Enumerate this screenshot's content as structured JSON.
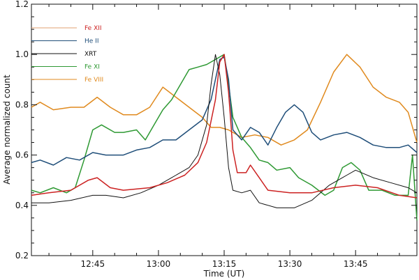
{
  "chart_data": {
    "type": "line",
    "xlabel": "Time (UT)",
    "ylabel": "Average normalized count",
    "x_unit": "UT",
    "xlim": [
      "12:31",
      "13:59"
    ],
    "ylim": [
      0.2,
      1.2
    ],
    "yticks": [
      "0.2",
      "0.4",
      "0.6",
      "0.8",
      "1.0",
      "1.2"
    ],
    "xticks": [
      "12:45",
      "13:00",
      "13:15",
      "13:30",
      "13:45"
    ],
    "grid": false,
    "legend_position": "top-left",
    "series": [
      {
        "name": "Fe XII",
        "color": "#cc2222",
        "legend_color": "#e0a070",
        "points": [
          [
            "12:31",
            0.44
          ],
          [
            "12:35",
            0.45
          ],
          [
            "12:40",
            0.46
          ],
          [
            "12:44",
            0.5
          ],
          [
            "12:46",
            0.51
          ],
          [
            "12:49",
            0.47
          ],
          [
            "12:52",
            0.46
          ],
          [
            "12:58",
            0.47
          ],
          [
            "13:02",
            0.49
          ],
          [
            "13:06",
            0.52
          ],
          [
            "13:09",
            0.57
          ],
          [
            "13:11",
            0.65
          ],
          [
            "13:13",
            0.82
          ],
          [
            "13:14",
            0.97
          ],
          [
            "13:15",
            1.0
          ],
          [
            "13:16",
            0.85
          ],
          [
            "13:17",
            0.62
          ],
          [
            "13:18",
            0.53
          ],
          [
            "13:20",
            0.53
          ],
          [
            "13:21",
            0.56
          ],
          [
            "13:23",
            0.51
          ],
          [
            "13:25",
            0.46
          ],
          [
            "13:30",
            0.45
          ],
          [
            "13:35",
            0.45
          ],
          [
            "13:40",
            0.47
          ],
          [
            "13:45",
            0.48
          ],
          [
            "13:50",
            0.47
          ],
          [
            "13:55",
            0.44
          ],
          [
            "13:59",
            0.43
          ]
        ]
      },
      {
        "name": "He II",
        "color": "#1f4e79",
        "legend_color": "#1f4e79",
        "points": [
          [
            "12:31",
            0.57
          ],
          [
            "12:33",
            0.58
          ],
          [
            "12:36",
            0.56
          ],
          [
            "12:39",
            0.59
          ],
          [
            "12:42",
            0.58
          ],
          [
            "12:45",
            0.61
          ],
          [
            "12:48",
            0.6
          ],
          [
            "12:52",
            0.6
          ],
          [
            "12:55",
            0.62
          ],
          [
            "12:58",
            0.63
          ],
          [
            "13:01",
            0.66
          ],
          [
            "13:04",
            0.66
          ],
          [
            "13:07",
            0.7
          ],
          [
            "13:10",
            0.74
          ],
          [
            "13:12",
            0.82
          ],
          [
            "13:14",
            0.98
          ],
          [
            "13:15",
            0.99
          ],
          [
            "13:16",
            0.9
          ],
          [
            "13:17",
            0.7
          ],
          [
            "13:19",
            0.66
          ],
          [
            "13:21",
            0.71
          ],
          [
            "13:23",
            0.69
          ],
          [
            "13:25",
            0.64
          ],
          [
            "13:27",
            0.71
          ],
          [
            "13:29",
            0.77
          ],
          [
            "13:31",
            0.8
          ],
          [
            "13:33",
            0.77
          ],
          [
            "13:35",
            0.69
          ],
          [
            "13:37",
            0.66
          ],
          [
            "13:40",
            0.68
          ],
          [
            "13:43",
            0.69
          ],
          [
            "13:46",
            0.67
          ],
          [
            "13:49",
            0.64
          ],
          [
            "13:52",
            0.63
          ],
          [
            "13:55",
            0.63
          ],
          [
            "13:57",
            0.64
          ],
          [
            "13:59",
            0.61
          ]
        ]
      },
      {
        "name": "XRT",
        "color": "#111111",
        "legend_color": "#111111",
        "points": [
          [
            "12:31",
            0.41
          ],
          [
            "12:35",
            0.41
          ],
          [
            "12:40",
            0.42
          ],
          [
            "12:45",
            0.44
          ],
          [
            "12:48",
            0.44
          ],
          [
            "12:52",
            0.43
          ],
          [
            "12:56",
            0.45
          ],
          [
            "13:00",
            0.48
          ],
          [
            "13:04",
            0.52
          ],
          [
            "13:07",
            0.55
          ],
          [
            "13:09",
            0.6
          ],
          [
            "13:11",
            0.72
          ],
          [
            "13:12",
            0.88
          ],
          [
            "13:13",
            1.0
          ],
          [
            "13:14",
            0.92
          ],
          [
            "13:15",
            0.75
          ],
          [
            "13:16",
            0.55
          ],
          [
            "13:17",
            0.46
          ],
          [
            "13:19",
            0.45
          ],
          [
            "13:21",
            0.46
          ],
          [
            "13:23",
            0.41
          ],
          [
            "13:27",
            0.39
          ],
          [
            "13:31",
            0.39
          ],
          [
            "13:35",
            0.42
          ],
          [
            "13:39",
            0.48
          ],
          [
            "13:43",
            0.52
          ],
          [
            "13:45",
            0.54
          ],
          [
            "13:49",
            0.51
          ],
          [
            "13:53",
            0.49
          ],
          [
            "13:57",
            0.47
          ],
          [
            "13:59",
            0.45
          ]
        ]
      },
      {
        "name": "Fe XI",
        "color": "#2e9933",
        "legend_color": "#2e9933",
        "points": [
          [
            "12:31",
            0.46
          ],
          [
            "12:33",
            0.45
          ],
          [
            "12:36",
            0.47
          ],
          [
            "12:39",
            0.45
          ],
          [
            "12:41",
            0.47
          ],
          [
            "12:43",
            0.58
          ],
          [
            "12:45",
            0.7
          ],
          [
            "12:47",
            0.72
          ],
          [
            "12:50",
            0.69
          ],
          [
            "12:52",
            0.69
          ],
          [
            "12:55",
            0.7
          ],
          [
            "12:57",
            0.66
          ],
          [
            "12:59",
            0.72
          ],
          [
            "13:01",
            0.78
          ],
          [
            "13:03",
            0.82
          ],
          [
            "13:05",
            0.88
          ],
          [
            "13:07",
            0.94
          ],
          [
            "13:09",
            0.95
          ],
          [
            "13:11",
            0.96
          ],
          [
            "13:13",
            0.98
          ],
          [
            "13:15",
            1.0
          ],
          [
            "13:16",
            0.88
          ],
          [
            "13:17",
            0.75
          ],
          [
            "13:19",
            0.67
          ],
          [
            "13:21",
            0.63
          ],
          [
            "13:23",
            0.58
          ],
          [
            "13:25",
            0.57
          ],
          [
            "13:27",
            0.54
          ],
          [
            "13:30",
            0.55
          ],
          [
            "13:32",
            0.51
          ],
          [
            "13:35",
            0.48
          ],
          [
            "13:38",
            0.44
          ],
          [
            "13:40",
            0.46
          ],
          [
            "13:42",
            0.55
          ],
          [
            "13:44",
            0.57
          ],
          [
            "13:46",
            0.54
          ],
          [
            "13:48",
            0.46
          ],
          [
            "13:51",
            0.46
          ],
          [
            "13:54",
            0.44
          ],
          [
            "13:57",
            0.44
          ],
          [
            "13:58",
            0.6
          ],
          [
            "13:59",
            0.34
          ]
        ]
      },
      {
        "name": "Fe VIII",
        "color": "#e08a1e",
        "legend_color": "#e08a1e",
        "points": [
          [
            "12:31",
            0.79
          ],
          [
            "12:33",
            0.81
          ],
          [
            "12:36",
            0.78
          ],
          [
            "12:40",
            0.79
          ],
          [
            "12:43",
            0.79
          ],
          [
            "12:46",
            0.83
          ],
          [
            "12:49",
            0.79
          ],
          [
            "12:52",
            0.76
          ],
          [
            "12:55",
            0.76
          ],
          [
            "12:58",
            0.79
          ],
          [
            "13:01",
            0.87
          ],
          [
            "13:04",
            0.83
          ],
          [
            "13:07",
            0.79
          ],
          [
            "13:10",
            0.75
          ],
          [
            "13:12",
            0.71
          ],
          [
            "13:14",
            0.71
          ],
          [
            "13:16",
            0.7
          ],
          [
            "13:19",
            0.67
          ],
          [
            "13:22",
            0.68
          ],
          [
            "13:25",
            0.67
          ],
          [
            "13:28",
            0.64
          ],
          [
            "13:31",
            0.66
          ],
          [
            "13:34",
            0.7
          ],
          [
            "13:37",
            0.81
          ],
          [
            "13:40",
            0.93
          ],
          [
            "13:43",
            1.0
          ],
          [
            "13:46",
            0.95
          ],
          [
            "13:49",
            0.87
          ],
          [
            "13:52",
            0.83
          ],
          [
            "13:55",
            0.81
          ],
          [
            "13:57",
            0.77
          ],
          [
            "13:59",
            0.65
          ]
        ]
      }
    ]
  }
}
